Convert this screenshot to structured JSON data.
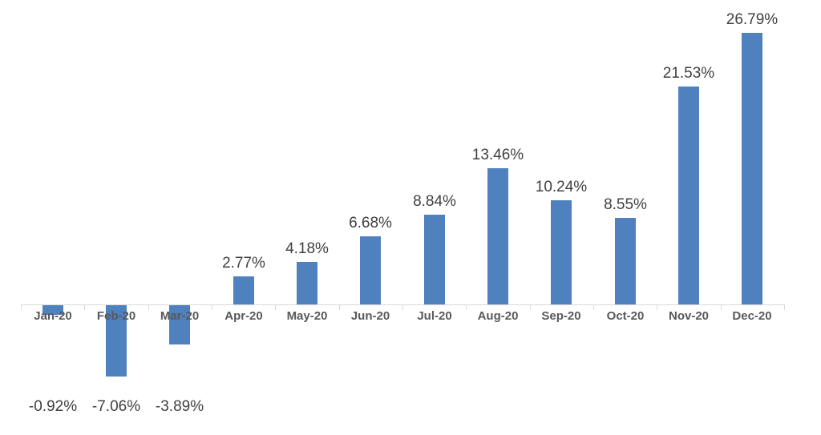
{
  "chart_data": {
    "type": "bar",
    "title": "",
    "xlabel": "",
    "ylabel": "",
    "categories": [
      "Jan-20",
      "Feb-20",
      "Mar-20",
      "Apr-20",
      "May-20",
      "Jun-20",
      "Jul-20",
      "Aug-20",
      "Sep-20",
      "Oct-20",
      "Nov-20",
      "Dec-20"
    ],
    "values": [
      -0.92,
      -7.06,
      -3.89,
      2.77,
      4.18,
      6.68,
      8.84,
      13.46,
      10.24,
      8.55,
      21.53,
      26.79
    ],
    "value_labels": [
      "-0.92%",
      "-7.06%",
      "-3.89%",
      "2.77%",
      "4.18%",
      "6.68%",
      "8.84%",
      "13.46%",
      "10.24%",
      "8.55%",
      "21.53%",
      "26.79%"
    ],
    "unit": "percent",
    "ylim": [
      -8,
      28
    ],
    "grid": false,
    "legend": false,
    "colors": {
      "bar": "#4E81BD",
      "axis_line": "#D9D9D9",
      "value_label": "#404040",
      "category_label": "#595959",
      "background": "#FFFFFF"
    }
  }
}
